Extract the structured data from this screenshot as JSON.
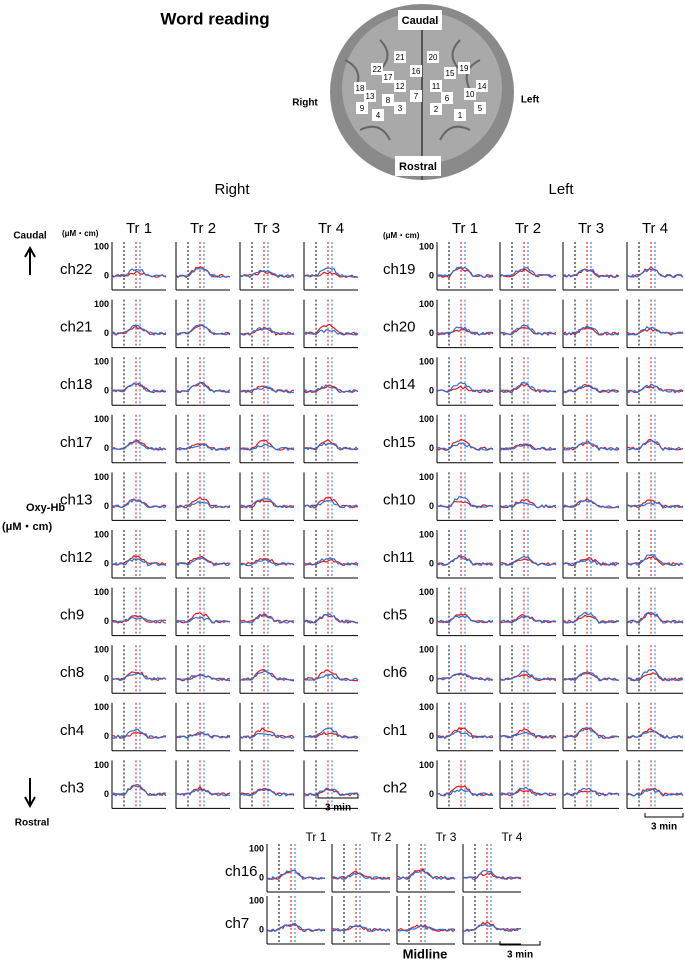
{
  "title": "Word reading",
  "brain": {
    "caudal": "Caudal",
    "rostral": "Rostral",
    "right": "Right",
    "left": "Left",
    "channels": [
      "1",
      "2",
      "3",
      "4",
      "5",
      "6",
      "7",
      "8",
      "9",
      "10",
      "11",
      "12",
      "13",
      "14",
      "15",
      "16",
      "17",
      "18",
      "19",
      "20",
      "21",
      "22"
    ]
  },
  "axis_labels": {
    "caudal": "Caudal",
    "rostral": "Rostral",
    "oxy": "Oxy-Hb",
    "oxy_unit": "(μM・cm)"
  },
  "yticks": [
    "100",
    "0"
  ],
  "scale_bar": "3 min",
  "panels": [
    {
      "heading": "Right",
      "unit": "(μM・cm)",
      "trials": [
        "Tr 1",
        "Tr 2",
        "Tr 3",
        "Tr 4"
      ],
      "channels": [
        "ch22",
        "ch21",
        "ch18",
        "ch17",
        "ch13",
        "ch12",
        "ch9",
        "ch8",
        "ch4",
        "ch3"
      ]
    },
    {
      "heading": "Left",
      "unit": "(μM・cm)",
      "trials": [
        "Tr 1",
        "Tr 2",
        "Tr 3",
        "Tr 4"
      ],
      "channels": [
        "ch19",
        "ch20",
        "ch14",
        "ch15",
        "ch10",
        "ch11",
        "ch5",
        "ch6",
        "ch1",
        "ch2"
      ]
    },
    {
      "heading": "Midline",
      "trials": [
        "Tr 1",
        "Tr 2",
        "Tr 3",
        "Tr 4"
      ],
      "channels": [
        "ch16",
        "ch7"
      ]
    }
  ]
}
